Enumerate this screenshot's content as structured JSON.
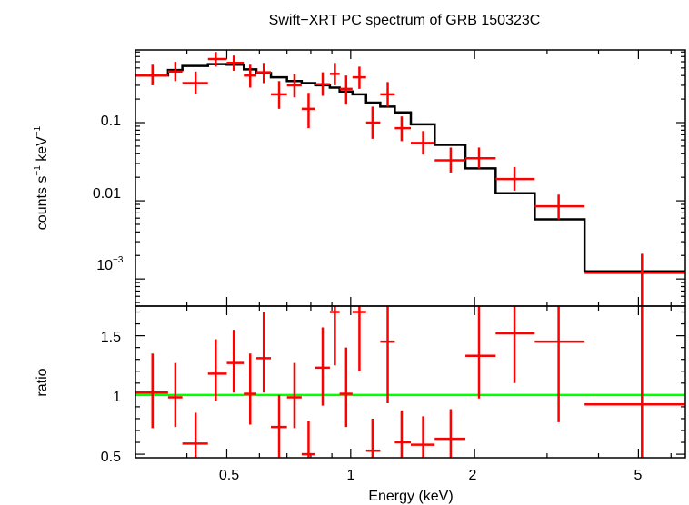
{
  "chart_data": [
    {
      "type": "scatter",
      "title": "Swift−XRT PC spectrum of GRB 150323C",
      "ylabel_base": "counts s",
      "ylabel_exp1": "−1",
      "ylabel_mid": " keV",
      "ylabel_exp2": "−1",
      "yscale": "log",
      "ylim": [
        0.00045,
        0.85
      ],
      "xscale": "log",
      "xlim": [
        0.3,
        6.5
      ],
      "yticks": [
        {
          "value": 0.1,
          "label": "0.1"
        },
        {
          "value": 0.01,
          "label": "0.01"
        },
        {
          "value": 0.001,
          "label_base": "10",
          "label_exp": "−3"
        }
      ],
      "colors": {
        "data": "#ff0000",
        "model": "#000000"
      },
      "series": [
        {
          "kind": "data",
          "points": [
            {
              "x": 0.33,
              "xlo": 0.3,
              "xhi": 0.36,
              "y": 0.4,
              "ylo": 0.3,
              "yhi": 0.55
            },
            {
              "x": 0.375,
              "xlo": 0.36,
              "xhi": 0.39,
              "y": 0.45,
              "ylo": 0.34,
              "yhi": 0.6
            },
            {
              "x": 0.42,
              "xlo": 0.39,
              "xhi": 0.45,
              "y": 0.32,
              "ylo": 0.23,
              "yhi": 0.45
            },
            {
              "x": 0.47,
              "xlo": 0.45,
              "xhi": 0.5,
              "y": 0.65,
              "ylo": 0.52,
              "yhi": 0.8
            },
            {
              "x": 0.52,
              "xlo": 0.5,
              "xhi": 0.55,
              "y": 0.58,
              "ylo": 0.46,
              "yhi": 0.72
            },
            {
              "x": 0.57,
              "xlo": 0.55,
              "xhi": 0.59,
              "y": 0.4,
              "ylo": 0.28,
              "yhi": 0.55
            },
            {
              "x": 0.615,
              "xlo": 0.59,
              "xhi": 0.64,
              "y": 0.44,
              "ylo": 0.32,
              "yhi": 0.58
            },
            {
              "x": 0.67,
              "xlo": 0.64,
              "xhi": 0.7,
              "y": 0.23,
              "ylo": 0.15,
              "yhi": 0.34
            },
            {
              "x": 0.73,
              "xlo": 0.7,
              "xhi": 0.76,
              "y": 0.3,
              "ylo": 0.21,
              "yhi": 0.42
            },
            {
              "x": 0.79,
              "xlo": 0.76,
              "xhi": 0.82,
              "y": 0.15,
              "ylo": 0.085,
              "yhi": 0.24
            },
            {
              "x": 0.855,
              "xlo": 0.82,
              "xhi": 0.89,
              "y": 0.31,
              "ylo": 0.22,
              "yhi": 0.44
            },
            {
              "x": 0.915,
              "xlo": 0.89,
              "xhi": 0.94,
              "y": 0.42,
              "ylo": 0.3,
              "yhi": 0.58
            },
            {
              "x": 0.975,
              "xlo": 0.94,
              "xhi": 1.01,
              "y": 0.27,
              "ylo": 0.17,
              "yhi": 0.4
            },
            {
              "x": 1.05,
              "xlo": 1.01,
              "xhi": 1.09,
              "y": 0.38,
              "ylo": 0.27,
              "yhi": 0.52
            },
            {
              "x": 1.13,
              "xlo": 1.09,
              "xhi": 1.18,
              "y": 0.1,
              "ylo": 0.062,
              "yhi": 0.16
            },
            {
              "x": 1.23,
              "xlo": 1.18,
              "xhi": 1.28,
              "y": 0.23,
              "ylo": 0.16,
              "yhi": 0.33
            },
            {
              "x": 1.33,
              "xlo": 1.28,
              "xhi": 1.4,
              "y": 0.085,
              "ylo": 0.058,
              "yhi": 0.12
            },
            {
              "x": 1.5,
              "xlo": 1.4,
              "xhi": 1.6,
              "y": 0.055,
              "ylo": 0.039,
              "yhi": 0.078
            },
            {
              "x": 1.75,
              "xlo": 1.6,
              "xhi": 1.9,
              "y": 0.033,
              "ylo": 0.023,
              "yhi": 0.048
            },
            {
              "x": 2.05,
              "xlo": 1.9,
              "xhi": 2.25,
              "y": 0.035,
              "ylo": 0.026,
              "yhi": 0.048
            },
            {
              "x": 2.5,
              "xlo": 2.25,
              "xhi": 2.8,
              "y": 0.019,
              "ylo": 0.0135,
              "yhi": 0.027
            },
            {
              "x": 3.2,
              "xlo": 2.8,
              "xhi": 3.7,
              "y": 0.0085,
              "ylo": 0.0058,
              "yhi": 0.012
            },
            {
              "x": 5.1,
              "xlo": 3.7,
              "xhi": 6.5,
              "y": 0.0012,
              "ylo": 0.00045,
              "yhi": 0.0021
            }
          ]
        },
        {
          "kind": "model",
          "steps": [
            {
              "x0": 0.3,
              "x1": 0.36,
              "y": 0.4
            },
            {
              "x0": 0.36,
              "x1": 0.39,
              "y": 0.47
            },
            {
              "x0": 0.39,
              "x1": 0.45,
              "y": 0.53
            },
            {
              "x0": 0.45,
              "x1": 0.5,
              "y": 0.56
            },
            {
              "x0": 0.5,
              "x1": 0.55,
              "y": 0.55
            },
            {
              "x0": 0.55,
              "x1": 0.59,
              "y": 0.48
            },
            {
              "x0": 0.59,
              "x1": 0.64,
              "y": 0.43
            },
            {
              "x0": 0.64,
              "x1": 0.7,
              "y": 0.38
            },
            {
              "x0": 0.7,
              "x1": 0.76,
              "y": 0.34
            },
            {
              "x0": 0.76,
              "x1": 0.82,
              "y": 0.32
            },
            {
              "x0": 0.82,
              "x1": 0.89,
              "y": 0.3
            },
            {
              "x0": 0.89,
              "x1": 0.94,
              "y": 0.28
            },
            {
              "x0": 0.94,
              "x1": 1.01,
              "y": 0.25
            },
            {
              "x0": 1.01,
              "x1": 1.09,
              "y": 0.23
            },
            {
              "x0": 1.09,
              "x1": 1.18,
              "y": 0.18
            },
            {
              "x0": 1.18,
              "x1": 1.28,
              "y": 0.16
            },
            {
              "x0": 1.28,
              "x1": 1.4,
              "y": 0.135
            },
            {
              "x0": 1.4,
              "x1": 1.6,
              "y": 0.095
            },
            {
              "x0": 1.6,
              "x1": 1.9,
              "y": 0.052
            },
            {
              "x0": 1.9,
              "x1": 2.25,
              "y": 0.026
            },
            {
              "x0": 2.25,
              "x1": 2.8,
              "y": 0.0125
            },
            {
              "x0": 2.8,
              "x1": 3.7,
              "y": 0.0058
            },
            {
              "x0": 3.7,
              "x1": 6.5,
              "y": 0.00125
            }
          ]
        }
      ]
    },
    {
      "type": "scatter",
      "ylabel": "ratio",
      "xlabel": "Energy (keV)",
      "xscale": "log",
      "xlim": [
        0.3,
        6.5
      ],
      "ylim": [
        0.47,
        1.75
      ],
      "xticks": [
        {
          "value": 0.5,
          "label": "0.5"
        },
        {
          "value": 1,
          "label": "1"
        },
        {
          "value": 2,
          "label": "2"
        },
        {
          "value": 5,
          "label": "5"
        }
      ],
      "yticks": [
        {
          "value": 0.5,
          "label": "0.5"
        },
        {
          "value": 1,
          "label": "1"
        },
        {
          "value": 1.5,
          "label": "1.5"
        }
      ],
      "reference_line": 1,
      "colors": {
        "data": "#ff0000",
        "reference": "#00ff00"
      },
      "points": [
        {
          "x": 0.33,
          "xlo": 0.3,
          "xhi": 0.36,
          "y": 1.02,
          "ylo": 0.72,
          "yhi": 1.35
        },
        {
          "x": 0.375,
          "xlo": 0.36,
          "xhi": 0.39,
          "y": 0.98,
          "ylo": 0.73,
          "yhi": 1.27
        },
        {
          "x": 0.42,
          "xlo": 0.39,
          "xhi": 0.45,
          "y": 0.59,
          "ylo": 0.47,
          "yhi": 0.85
        },
        {
          "x": 0.47,
          "xlo": 0.45,
          "xhi": 0.5,
          "y": 1.18,
          "ylo": 0.95,
          "yhi": 1.47
        },
        {
          "x": 0.52,
          "xlo": 0.5,
          "xhi": 0.55,
          "y": 1.27,
          "ylo": 1.02,
          "yhi": 1.55
        },
        {
          "x": 0.57,
          "xlo": 0.55,
          "xhi": 0.59,
          "y": 1.01,
          "ylo": 0.75,
          "yhi": 1.35
        },
        {
          "x": 0.615,
          "xlo": 0.59,
          "xhi": 0.64,
          "y": 1.31,
          "ylo": 1.02,
          "yhi": 1.7
        },
        {
          "x": 0.67,
          "xlo": 0.64,
          "xhi": 0.7,
          "y": 0.73,
          "ylo": 0.47,
          "yhi": 1.0
        },
        {
          "x": 0.73,
          "xlo": 0.7,
          "xhi": 0.76,
          "y": 0.98,
          "ylo": 0.72,
          "yhi": 1.27
        },
        {
          "x": 0.79,
          "xlo": 0.76,
          "xhi": 0.82,
          "y": 0.5,
          "ylo": 0.47,
          "yhi": 0.78
        },
        {
          "x": 0.855,
          "xlo": 0.82,
          "xhi": 0.89,
          "y": 1.23,
          "ylo": 0.91,
          "yhi": 1.57
        },
        {
          "x": 0.915,
          "xlo": 0.89,
          "xhi": 0.94,
          "y": 1.7,
          "ylo": 1.25,
          "yhi": 1.75
        },
        {
          "x": 0.975,
          "xlo": 0.94,
          "xhi": 1.01,
          "y": 1.01,
          "ylo": 0.73,
          "yhi": 1.4
        },
        {
          "x": 1.05,
          "xlo": 1.01,
          "xhi": 1.09,
          "y": 1.7,
          "ylo": 1.2,
          "yhi": 1.75
        },
        {
          "x": 1.13,
          "xlo": 1.09,
          "xhi": 1.18,
          "y": 0.53,
          "ylo": 0.47,
          "yhi": 0.8
        },
        {
          "x": 1.23,
          "xlo": 1.18,
          "xhi": 1.28,
          "y": 1.45,
          "ylo": 0.93,
          "yhi": 1.75
        },
        {
          "x": 1.33,
          "xlo": 1.28,
          "xhi": 1.4,
          "y": 0.6,
          "ylo": 0.47,
          "yhi": 0.87
        },
        {
          "x": 1.5,
          "xlo": 1.4,
          "xhi": 1.6,
          "y": 0.58,
          "ylo": 0.47,
          "yhi": 0.82
        },
        {
          "x": 1.75,
          "xlo": 1.6,
          "xhi": 1.9,
          "y": 0.63,
          "ylo": 0.47,
          "yhi": 0.88
        },
        {
          "x": 2.05,
          "xlo": 1.9,
          "xhi": 2.25,
          "y": 1.33,
          "ylo": 0.97,
          "yhi": 1.75
        },
        {
          "x": 2.5,
          "xlo": 2.25,
          "xhi": 2.8,
          "y": 1.52,
          "ylo": 1.1,
          "yhi": 1.75
        },
        {
          "x": 3.2,
          "xlo": 2.8,
          "xhi": 3.7,
          "y": 1.45,
          "ylo": 0.77,
          "yhi": 1.75
        },
        {
          "x": 5.1,
          "xlo": 3.7,
          "xhi": 6.5,
          "y": 0.92,
          "ylo": 0.47,
          "yhi": 1.75
        }
      ]
    }
  ]
}
